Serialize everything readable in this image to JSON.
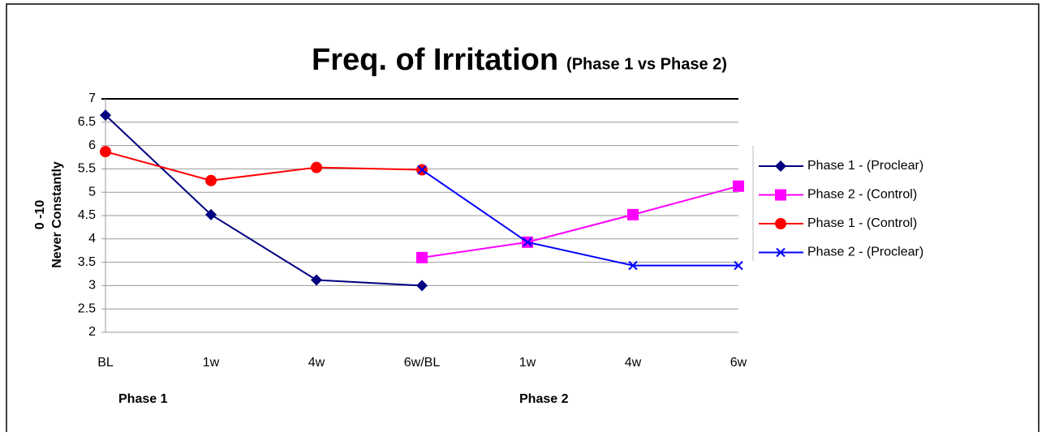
{
  "chart_data": {
    "type": "line",
    "title": "Freq. of Irritation",
    "subtitle": "(Phase 1 vs Phase 2)",
    "y_label": [
      "0 -10",
      "Never Constantly"
    ],
    "annotations": [
      "Phase 1",
      "Phase 2"
    ],
    "categories": [
      "BL",
      "1w",
      "4w",
      "6w/BL",
      "1w",
      "4w",
      "6w"
    ],
    "ylim": [
      2,
      7
    ],
    "yticks": [
      2,
      2.5,
      3,
      3.5,
      4,
      4.5,
      5,
      5.5,
      6,
      6.5,
      7
    ],
    "grid": true,
    "legend": "right",
    "series": [
      {
        "name": "Phase 1 - (Proclear)",
        "color": "#000080",
        "marker": "diamond",
        "values": [
          6.65,
          4.52,
          3.12,
          3.0,
          null,
          null,
          null
        ]
      },
      {
        "name": "Phase 2 - (Control)",
        "color": "#ff00ff",
        "marker": "square",
        "values": [
          null,
          null,
          null,
          3.6,
          3.93,
          4.52,
          5.13
        ]
      },
      {
        "name": "Phase 1 - (Control)",
        "color": "#ff0000",
        "marker": "circle",
        "values": [
          5.87,
          5.25,
          5.53,
          5.48,
          null,
          null,
          null
        ]
      },
      {
        "name": "Phase 2 - (Proclear)",
        "color": "#0000ff",
        "marker": "x",
        "values": [
          null,
          null,
          null,
          5.48,
          3.93,
          3.43,
          3.43
        ]
      }
    ]
  }
}
